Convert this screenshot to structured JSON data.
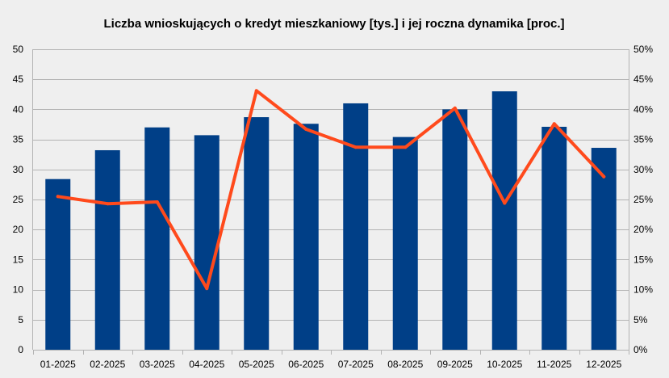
{
  "chart_data": {
    "type": "bar",
    "title": "Liczba wnioskujących o kredyt mieszkaniowy [tys.] i jej roczna dynamika [proc.]",
    "categories": [
      "01-2025",
      "02-2025",
      "03-2025",
      "04-2025",
      "05-2025",
      "06-2025",
      "07-2025",
      "08-2025",
      "09-2025",
      "10-2025",
      "11-2025",
      "12-2025"
    ],
    "series": [
      {
        "type": "bar",
        "axis": "left",
        "color": "#003f87",
        "values": [
          28.4,
          33.2,
          37.0,
          35.7,
          38.7,
          37.6,
          41.0,
          35.4,
          40.0,
          43.0,
          37.1,
          33.6
        ]
      },
      {
        "type": "line",
        "axis": "right",
        "color": "#ff4a1c",
        "values": [
          25.5,
          24.3,
          24.6,
          10.2,
          43.1,
          36.7,
          33.7,
          33.7,
          40.2,
          24.4,
          37.6,
          28.8
        ]
      }
    ],
    "ylim": [
      0,
      50
    ],
    "y_ticks": [
      "0",
      "5",
      "10",
      "15",
      "20",
      "25",
      "30",
      "35",
      "40",
      "45",
      "50"
    ],
    "y2lim": [
      0,
      50
    ],
    "y2_ticks": [
      "0%",
      "5%",
      "10%",
      "15%",
      "20%",
      "25%",
      "30%",
      "35%",
      "40%",
      "45%",
      "50%"
    ],
    "grid": true,
    "legend": "none",
    "background": "#efefef",
    "gridline_color": "#b3b3b3"
  }
}
